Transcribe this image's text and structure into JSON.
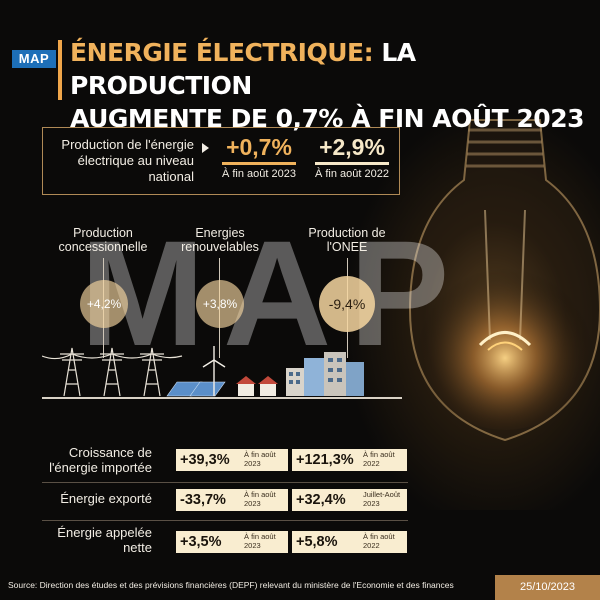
{
  "logo": "MAP",
  "title": {
    "accent": "ÉNERGIE ÉLECTRIQUE:",
    "rest_line1": " LA PRODUCTION",
    "line2": "AUGMENTE DE 0,7% À FIN AOÛT 2023"
  },
  "watermark": "MAP",
  "production": {
    "label": "Production de l'énergie électrique au niveau national",
    "stats": [
      {
        "value": "+0,7%",
        "sub": "À fin août 2023"
      },
      {
        "value": "+2,9%",
        "sub": "À fin août 2022"
      }
    ]
  },
  "columns": [
    {
      "label": "Production concessionnelle",
      "value": "+4,2%"
    },
    {
      "label": "Energies renouvelables",
      "value": "+3,8%"
    },
    {
      "label": "Production de l'ONEE",
      "value": "-9,4%"
    }
  ],
  "rows": [
    {
      "label": "Croissance de l'énergie importée",
      "a_value": "+39,3%",
      "a_sub": "À fin août 2023",
      "b_value": "+121,3%",
      "b_sub": "À fin août 2022"
    },
    {
      "label": "Énergie exporté",
      "a_value": "-33,7%",
      "a_sub": "À fin août 2023",
      "b_value": "+32,4%",
      "b_sub": "Juillet-Août 2023"
    },
    {
      "label": "Énergie appelée nette",
      "a_value": "+3,5%",
      "a_sub": "À fin août 2023",
      "b_value": "+5,8%",
      "b_sub": "À fin août 2022"
    }
  ],
  "footer": {
    "source": "Source: Direction des études et des prévisions financières (DEPF) relevant du ministère de l'Economie et des finances",
    "date": "25/10/2023"
  },
  "colors": {
    "accent": "#f0b25c",
    "pill_bg": "#f9edd0",
    "date_bg": "#b3824a",
    "logo_bg": "#1d6fb8"
  }
}
